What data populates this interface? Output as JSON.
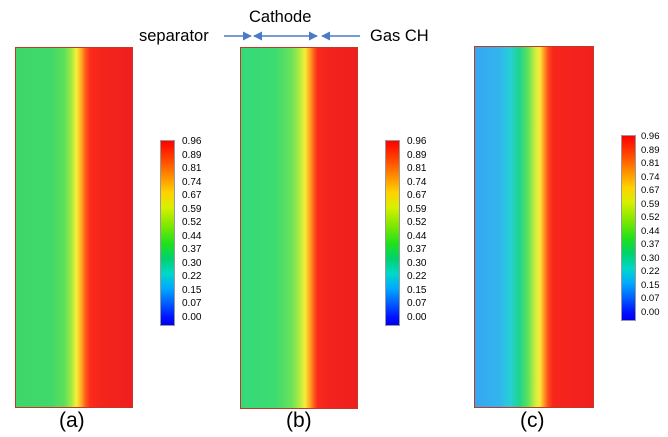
{
  "labels": {
    "separator": "separator",
    "cathode": "Cathode",
    "gas_channel": "Gas CH"
  },
  "panels": [
    {
      "caption": "(a)"
    },
    {
      "caption": "(b)"
    },
    {
      "caption": "(c)"
    }
  ],
  "colorbar": {
    "ticks": [
      "0.96",
      "0.89",
      "0.81",
      "0.74",
      "0.67",
      "0.59",
      "0.52",
      "0.44",
      "0.37",
      "0.30",
      "0.22",
      "0.15",
      "0.07",
      "0.00"
    ]
  },
  "colors": {
    "border": "#c0392b",
    "arrow": "#4a7ac8",
    "high": "#f01f1f",
    "mid": "#f2f23a",
    "low": "#0000ee"
  }
}
